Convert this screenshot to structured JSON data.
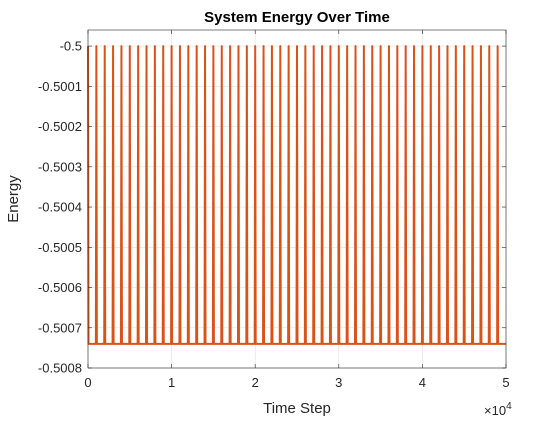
{
  "chart_data": {
    "type": "line",
    "title": "System Energy Over Time",
    "xlabel": "Time Step",
    "ylabel": "Energy",
    "x_exponent_base": "×10",
    "x_exponent_power": "4",
    "xlim": [
      0,
      50000
    ],
    "ylim": [
      -0.5008,
      -0.49996
    ],
    "x_ticks": [
      0,
      10000,
      20000,
      30000,
      40000,
      50000
    ],
    "x_tick_labels": [
      "0",
      "1",
      "2",
      "3",
      "4",
      "5"
    ],
    "y_ticks": [
      -0.5,
      -0.5001,
      -0.5002,
      -0.5003,
      -0.5004,
      -0.5005,
      -0.5006,
      -0.5007,
      -0.5008
    ],
    "y_tick_labels": [
      "-0.5",
      "-0.5001",
      "-0.5002",
      "-0.5003",
      "-0.5004",
      "-0.5005",
      "-0.5006",
      "-0.5007",
      "-0.5008"
    ],
    "grid": true,
    "series": [
      {
        "color": "#D95319",
        "pattern": "periodic spikes",
        "baseline": -0.50074,
        "peak": -0.5,
        "period": 1000,
        "start": 0,
        "end": 50000
      }
    ]
  }
}
